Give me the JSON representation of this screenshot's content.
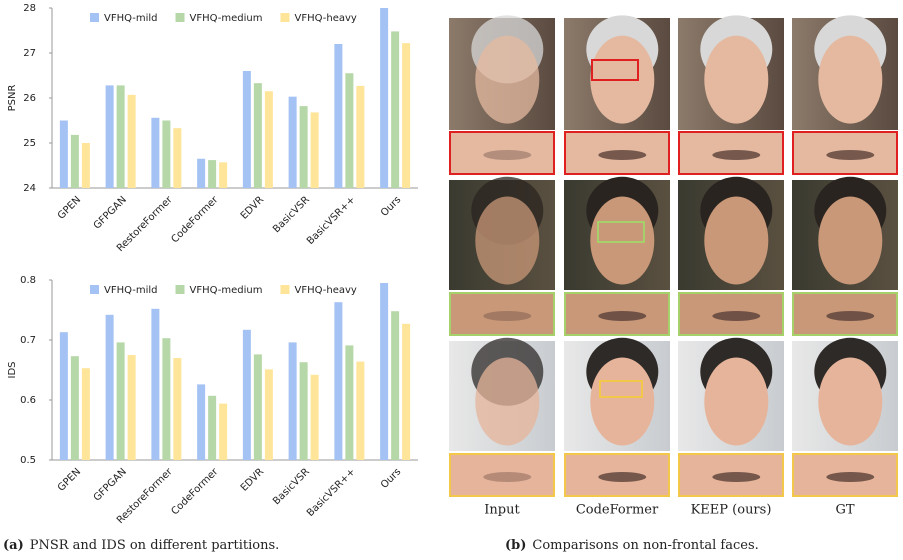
{
  "chart_data": [
    {
      "type": "bar",
      "ylabel": "PSNR",
      "categories": [
        "GPEN",
        "GFPGAN",
        "RestoreFormer",
        "CodeFormer",
        "EDVR",
        "BasicVSR",
        "BasicVSR++",
        "Ours"
      ],
      "series": [
        {
          "name": "VFHQ-mild",
          "color": "#a4c2f4",
          "values": [
            25.5,
            26.28,
            25.56,
            24.65,
            26.6,
            26.03,
            27.2,
            28.0
          ]
        },
        {
          "name": "VFHQ-medium",
          "color": "#b6d7a8",
          "values": [
            25.18,
            26.28,
            25.5,
            24.62,
            26.33,
            25.82,
            26.55,
            27.48
          ]
        },
        {
          "name": "VFHQ-heavy",
          "color": "#ffe599",
          "values": [
            25.0,
            26.07,
            25.33,
            24.57,
            26.15,
            25.68,
            26.27,
            27.22
          ]
        }
      ],
      "ylim": [
        24,
        28
      ],
      "yticks": [
        24,
        25,
        26,
        27,
        28
      ],
      "legend": "top"
    },
    {
      "type": "bar",
      "ylabel": "IDS",
      "categories": [
        "GPEN",
        "GFPGAN",
        "RestoreFormer",
        "CodeFormer",
        "EDVR",
        "BasicVSR",
        "BasicVSR++",
        "Ours"
      ],
      "series": [
        {
          "name": "VFHQ-mild",
          "color": "#a4c2f4",
          "values": [
            0.713,
            0.742,
            0.752,
            0.626,
            0.717,
            0.696,
            0.763,
            0.795
          ]
        },
        {
          "name": "VFHQ-medium",
          "color": "#b6d7a8",
          "values": [
            0.673,
            0.696,
            0.703,
            0.607,
            0.676,
            0.663,
            0.691,
            0.748
          ]
        },
        {
          "name": "VFHQ-heavy",
          "color": "#ffe599",
          "values": [
            0.653,
            0.675,
            0.67,
            0.594,
            0.651,
            0.642,
            0.664,
            0.727
          ]
        }
      ],
      "ylim": [
        0.5,
        0.8
      ],
      "yticks": [
        0.5,
        0.6,
        0.7,
        0.8
      ],
      "legend": "top"
    }
  ],
  "image_grid": {
    "columns": [
      "Input",
      "CodeFormer",
      "KEEP (ours)",
      "GT"
    ]
  },
  "captions": [
    {
      "label": "(a)",
      "text": "PNSR and IDS on different partitions."
    },
    {
      "label": "(b)",
      "text": "Comparisons on non-frontal faces."
    }
  ]
}
